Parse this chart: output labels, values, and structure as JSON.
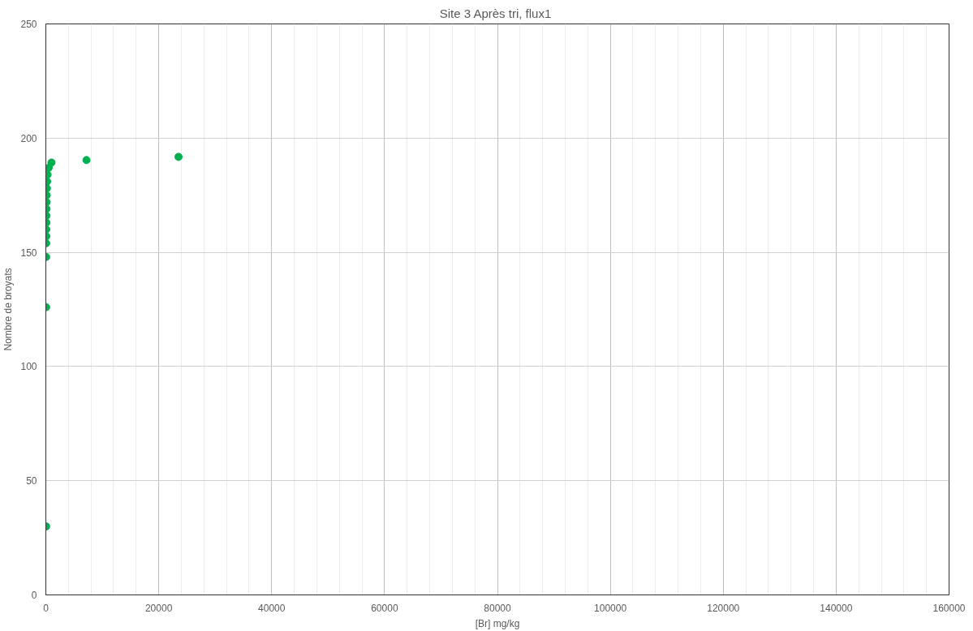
{
  "chart_data": {
    "type": "scatter",
    "title": "Site 3  Après tri, flux1",
    "xlabel": "[Br] mg/kg",
    "ylabel": "Nombre de broyats",
    "x": [
      50,
      50,
      50,
      60,
      70,
      80,
      90,
      100,
      110,
      130,
      150,
      180,
      220,
      300,
      500,
      1000,
      7200,
      23500
    ],
    "series": [
      {
        "color": "#00b050",
        "values": [
          30,
          126,
          148,
          154,
          157,
          160,
          163,
          166,
          169,
          172,
          175,
          178,
          181,
          184,
          187,
          189.3,
          190.4,
          191.8
        ]
      }
    ],
    "marker": "circle",
    "xlim": [
      0,
      160000
    ],
    "ylim": [
      0,
      250
    ],
    "xticks": [
      0,
      20000,
      40000,
      60000,
      80000,
      100000,
      120000,
      140000,
      160000
    ],
    "yticks": [
      0,
      50,
      100,
      150,
      200,
      250
    ],
    "grid": true
  }
}
